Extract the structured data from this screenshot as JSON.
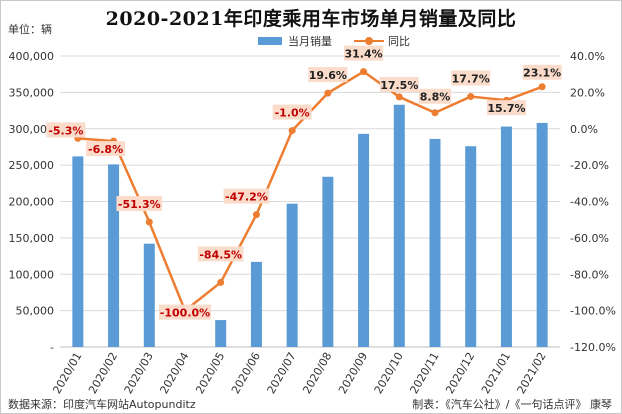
{
  "title": "2020-2021年印度乘用车市场单月销量及同比",
  "unit_label": "单位：辆",
  "source_text": "数据来源：印度汽车网站Autopunditz",
  "credit_text": "制表：《汽车公社》/《一句话点评》 康琴",
  "chart_data": {
    "type": "bar+line",
    "categories": [
      "2020/01",
      "2020/02",
      "2020/03",
      "2020/04",
      "2020/05",
      "2020/06",
      "2020/07",
      "2020/08",
      "2020/09",
      "2020/10",
      "2020/11",
      "2020/12",
      "2021/01",
      "2021/02"
    ],
    "series": [
      {
        "name": "当月销量",
        "type": "bar",
        "axis": "left",
        "color": "#5b9bd5",
        "values": [
          262000,
          251000,
          142000,
          0,
          37000,
          117000,
          197000,
          234000,
          293000,
          333000,
          286000,
          276000,
          303000,
          308000
        ]
      },
      {
        "name": "同比",
        "type": "line",
        "axis": "right",
        "color": "#ed7d31",
        "values": [
          -5.3,
          -6.8,
          -51.3,
          -100.0,
          -84.5,
          -47.2,
          -1.0,
          19.6,
          31.4,
          17.5,
          8.8,
          17.7,
          15.7,
          23.1
        ],
        "labels": [
          "-5.3%",
          "-6.8%",
          "-51.3%",
          "-100.0%",
          "-84.5%",
          "-47.2%",
          "-1.0%",
          "19.6%",
          "31.4%",
          "17.5%",
          "8.8%",
          "17.7%",
          "15.7%",
          "23.1%"
        ]
      }
    ],
    "y_left": {
      "min": 0,
      "max": 400000,
      "step": 50000,
      "ticks": [
        "-",
        "50,000",
        "100,000",
        "150,000",
        "200,000",
        "250,000",
        "300,000",
        "350,000",
        "400,000"
      ]
    },
    "y_right": {
      "min": -120,
      "max": 40,
      "step": 20,
      "ticks": [
        "-120.0%",
        "-100.0%",
        "-80.0%",
        "-60.0%",
        "-40.0%",
        "-20.0%",
        "0.0%",
        "20.0%",
        "40.0%"
      ]
    },
    "grid": true,
    "legend": "top"
  }
}
